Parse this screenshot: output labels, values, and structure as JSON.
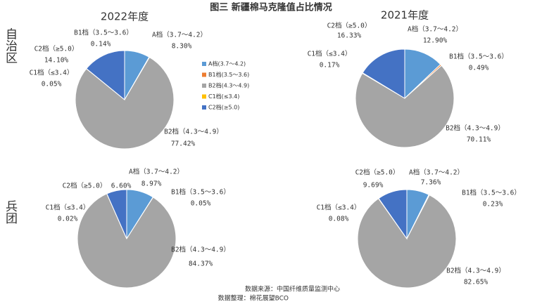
{
  "title": "图三  新疆棉马克隆值占比情况",
  "columns": [
    "2022年度",
    "2021年度"
  ],
  "rows": [
    "自治区",
    "兵团"
  ],
  "legend": [
    {
      "name": "A档(3.7～4.2)",
      "color": "#5b9bd5"
    },
    {
      "name": "B1档(3.5～3.6)",
      "color": "#ed7d31"
    },
    {
      "name": "B2档(4.3～4.9)",
      "color": "#a5a5a5"
    },
    {
      "name": "C1档(≤3.4)",
      "color": "#ffc000"
    },
    {
      "name": "C2档(≥5.0)",
      "color": "#4472c4"
    }
  ],
  "notes": [
    "数据来源：中国纤维质量监测中心",
    "数据整理：棉花展望BCO"
  ],
  "chart_data": [
    {
      "type": "pie",
      "categories": [
        "A档（3.7～4.2）",
        "B1档（3.5～3.6）",
        "B2档（4.3～4.9）",
        "C1档（≤3.4）",
        "C2档（≥5.0）"
      ],
      "colors": [
        "#5b9bd5",
        "#ed7d31",
        "#a5a5a5",
        "#ffc000",
        "#4472c4"
      ],
      "values": [
        8.3,
        0.14,
        77.42,
        0.05,
        14.1
      ],
      "value_labels": [
        "8.30%",
        "0.14%",
        "77.42%",
        "0.05%",
        "14.10%"
      ]
    },
    {
      "type": "pie",
      "categories": [
        "A档（3.7～4.2）",
        "B1档（3.5～3.6）",
        "B2档（4.3～4.9）",
        "C1档（≤3.4）",
        "C2档（≥5.0）"
      ],
      "colors": [
        "#5b9bd5",
        "#ed7d31",
        "#a5a5a5",
        "#ffc000",
        "#4472c4"
      ],
      "values": [
        12.9,
        0.49,
        70.11,
        0.17,
        16.33
      ],
      "value_labels": [
        "12.90%",
        "0.49%",
        "70.11%",
        "0.17%",
        "16.33%"
      ]
    },
    {
      "type": "pie",
      "categories": [
        "A档（3.7～4.2）",
        "B1档（3.5～3.6）",
        "B2档（4.3～4.9）",
        "C1档（≤3.4）",
        "C2档（≥5.0）"
      ],
      "colors": [
        "#5b9bd5",
        "#ed7d31",
        "#a5a5a5",
        "#ffc000",
        "#4472c4"
      ],
      "values": [
        8.97,
        0.05,
        84.37,
        0.02,
        6.6
      ],
      "value_labels": [
        "8.97%",
        "0.05%",
        "84.37%",
        "0.02%",
        "6.60%"
      ]
    },
    {
      "type": "pie",
      "categories": [
        "A档（3.7～4.2）",
        "B1档（3.5～3.6）",
        "B2档（4.3～4.9）",
        "C1档（≤3.4）",
        "C2档（≥5.0）"
      ],
      "colors": [
        "#5b9bd5",
        "#ed7d31",
        "#a5a5a5",
        "#ffc000",
        "#4472c4"
      ],
      "values": [
        7.36,
        0.23,
        82.65,
        0.08,
        9.69
      ],
      "value_labels": [
        "7.36%",
        "0.23%",
        "82.65%",
        "0.08%",
        "9.69%"
      ]
    }
  ]
}
